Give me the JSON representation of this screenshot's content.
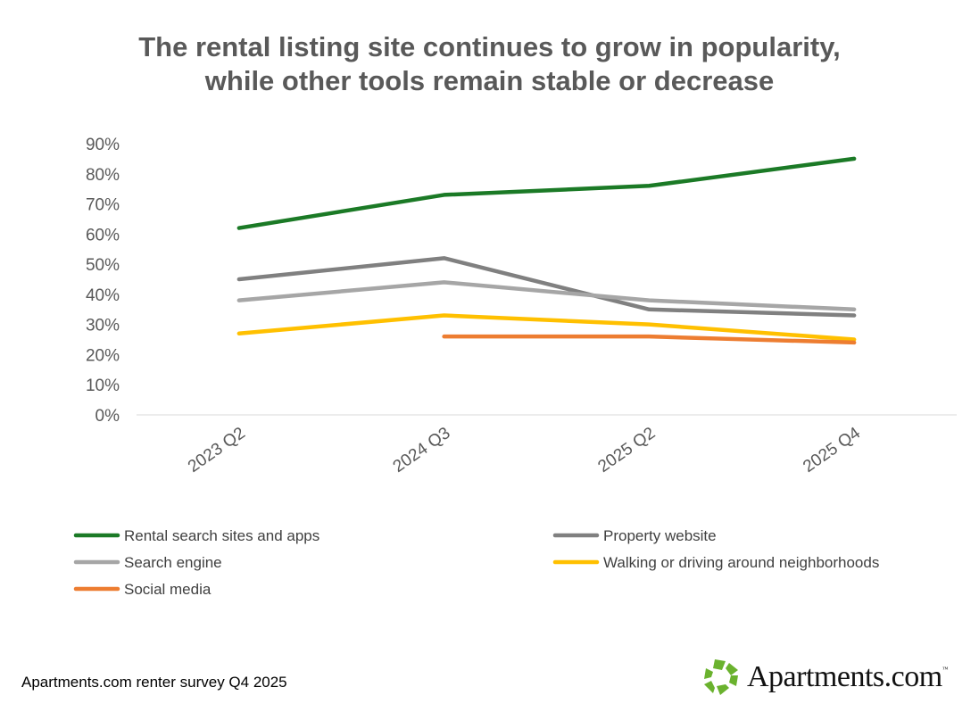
{
  "chart_data": {
    "type": "line",
    "title": "The rental listing site continues to grow in popularity, while other tools remain stable or decrease",
    "title_lines": [
      "The rental listing site continues to grow in popularity,",
      "while other tools remain stable or decrease"
    ],
    "categories": [
      "2023 Q2",
      "2024 Q3",
      "2025 Q2",
      "2025 Q4"
    ],
    "ylim": [
      0,
      90
    ],
    "yticks": [
      0,
      10,
      20,
      30,
      40,
      50,
      60,
      70,
      80,
      90
    ],
    "ytick_suffix": "%",
    "xlabel": "",
    "ylabel": "",
    "grid": false,
    "legend_position": "bottom",
    "series": [
      {
        "name": "Rental search sites and apps",
        "color": "#1b7a26",
        "values": [
          62,
          73,
          76,
          85
        ]
      },
      {
        "name": "Property website",
        "color": "#808080",
        "values": [
          45,
          52,
          35,
          33
        ]
      },
      {
        "name": "Search engine",
        "color": "#a6a6a6",
        "values": [
          38,
          44,
          38,
          35
        ]
      },
      {
        "name": "Walking or driving around neighborhoods",
        "color": "#ffc000",
        "values": [
          27,
          33,
          30,
          25
        ]
      },
      {
        "name": "Social media",
        "color": "#ed7d31",
        "values": [
          null,
          26,
          26,
          24
        ]
      }
    ]
  },
  "footer": {
    "source": "Apartments.com renter survey Q4 2025",
    "logo_text": "Apartments.com",
    "logo_tm": "™"
  }
}
